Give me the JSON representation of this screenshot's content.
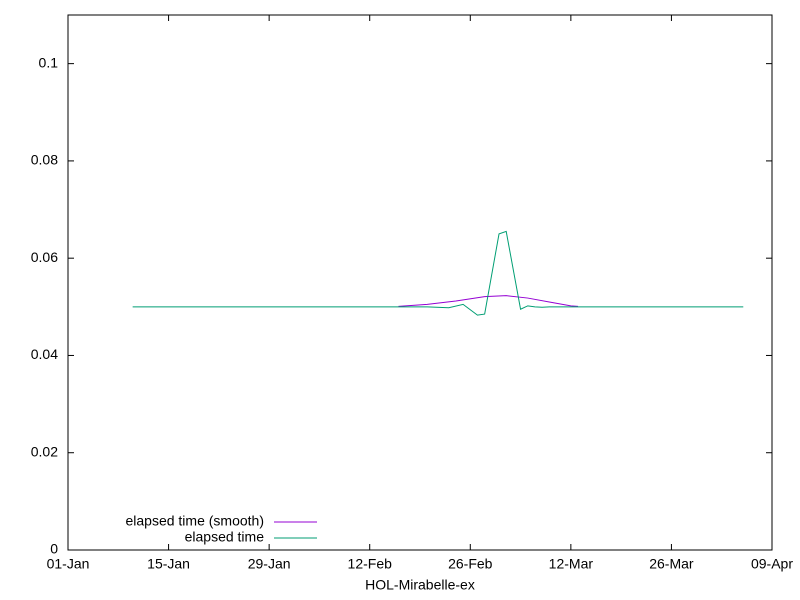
{
  "chart_data": {
    "type": "line",
    "xlabel": "HOL-Mirabelle-ex",
    "xlim": [
      0,
      98
    ],
    "xticks": [
      {
        "value": 0,
        "label": "01-Jan"
      },
      {
        "value": 14,
        "label": "15-Jan"
      },
      {
        "value": 28,
        "label": "29-Jan"
      },
      {
        "value": 42,
        "label": "12-Feb"
      },
      {
        "value": 56,
        "label": "26-Feb"
      },
      {
        "value": 70,
        "label": "12-Mar"
      },
      {
        "value": 84,
        "label": "26-Mar"
      },
      {
        "value": 98,
        "label": "09-Apr"
      }
    ],
    "ylim": [
      0,
      0.11
    ],
    "yticks": [
      0,
      0.02,
      0.04,
      0.06,
      0.08,
      0.1
    ],
    "legend": "bottom-left",
    "series": [
      {
        "name": "elapsed time (smooth)",
        "color": "#9400d3",
        "x": [
          46,
          50,
          54,
          58,
          61,
          64,
          67,
          70,
          71
        ],
        "values": [
          0.0501,
          0.0505,
          0.0512,
          0.0521,
          0.0523,
          0.0518,
          0.051,
          0.0502,
          0.0501
        ]
      },
      {
        "name": "elapsed time",
        "color": "#009e73",
        "x": [
          9,
          50,
          53,
          55,
          57,
          58,
          60,
          61,
          63,
          64,
          65,
          66,
          67,
          94
        ],
        "values": [
          0.05,
          0.05,
          0.0498,
          0.0505,
          0.0483,
          0.0485,
          0.065,
          0.0655,
          0.0495,
          0.0502,
          0.05,
          0.0499,
          0.05,
          0.05
        ]
      }
    ]
  }
}
